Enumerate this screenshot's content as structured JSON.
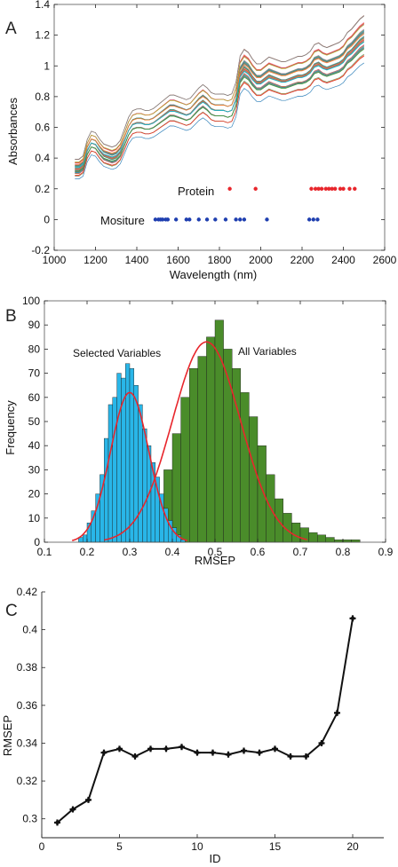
{
  "chart_data": [
    {
      "panel_label": "A",
      "type": "line",
      "xlabel": "Wavelength (nm)",
      "ylabel": "Absorbances",
      "xlim": [
        1000,
        2600
      ],
      "ylim": [
        -0.2,
        1.4
      ],
      "xticks": [
        1000,
        1200,
        1400,
        1600,
        1800,
        2000,
        2200,
        2400,
        2600
      ],
      "yticks": [
        -0.2,
        0,
        0.2,
        0.4,
        0.6,
        0.8,
        1,
        1.2,
        1.4
      ],
      "spectra": {
        "count": 40,
        "x": [
          1100,
          1120,
          1140,
          1160,
          1180,
          1200,
          1220,
          1240,
          1260,
          1280,
          1300,
          1320,
          1340,
          1360,
          1380,
          1400,
          1420,
          1440,
          1460,
          1480,
          1500,
          1520,
          1540,
          1560,
          1580,
          1600,
          1620,
          1640,
          1660,
          1680,
          1700,
          1720,
          1740,
          1760,
          1780,
          1800,
          1820,
          1840,
          1860,
          1880,
          1900,
          1920,
          1940,
          1960,
          1980,
          2000,
          2020,
          2040,
          2060,
          2080,
          2100,
          2120,
          2140,
          2160,
          2180,
          2200,
          2220,
          2240,
          2260,
          2280,
          2300,
          2320,
          2340,
          2360,
          2380,
          2400,
          2420,
          2440,
          2460,
          2480,
          2500
        ],
        "mean": [
          0.32,
          0.32,
          0.34,
          0.44,
          0.49,
          0.48,
          0.44,
          0.41,
          0.4,
          0.39,
          0.4,
          0.43,
          0.5,
          0.57,
          0.61,
          0.62,
          0.62,
          0.61,
          0.61,
          0.62,
          0.64,
          0.66,
          0.68,
          0.7,
          0.7,
          0.69,
          0.68,
          0.67,
          0.68,
          0.71,
          0.74,
          0.76,
          0.74,
          0.71,
          0.7,
          0.7,
          0.7,
          0.69,
          0.7,
          0.77,
          0.93,
          0.97,
          0.95,
          0.91,
          0.88,
          0.88,
          0.9,
          0.92,
          0.91,
          0.9,
          0.89,
          0.89,
          0.9,
          0.91,
          0.92,
          0.92,
          0.93,
          0.95,
          0.99,
          1.0,
          0.98,
          0.97,
          0.98,
          0.99,
          1.0,
          1.02,
          1.06,
          1.08,
          1.11,
          1.14,
          1.16
        ],
        "spread_low": -0.06,
        "spread_high": 0.1,
        "colors": [
          "#1f77b4",
          "#d62728",
          "#2ca02c",
          "#17becf",
          "#9467bd",
          "#e377c2",
          "#8c564b",
          "#bcbd22",
          "#ff7f0e",
          "#7f7f7f"
        ]
      },
      "markers": [
        {
          "name": "Protein",
          "y": 0.2,
          "color": "#e8262c",
          "x": [
            1850,
            1975,
            2245,
            2265,
            2280,
            2295,
            2315,
            2330,
            2345,
            2360,
            2385,
            2400,
            2430,
            2455
          ]
        },
        {
          "name": "Mositure",
          "y": 0,
          "color": "#1f3fb0",
          "x": [
            1490,
            1505,
            1515,
            1525,
            1540,
            1550,
            1590,
            1640,
            1655,
            1700,
            1740,
            1780,
            1830,
            1880,
            1900,
            1920,
            2030,
            2235,
            2255,
            2275
          ]
        }
      ]
    },
    {
      "panel_label": "B",
      "type": "bar",
      "xlabel": "RMSEP",
      "ylabel": "Frequency",
      "xlim": [
        0.1,
        0.9
      ],
      "ylim": [
        0,
        100
      ],
      "xticks": [
        0.1,
        0.2,
        0.3,
        0.4,
        0.5,
        0.6,
        0.7,
        0.8,
        0.9
      ],
      "yticks": [
        0,
        10,
        20,
        30,
        40,
        50,
        60,
        70,
        80,
        90,
        100
      ],
      "annotations": [
        "Selected Variables",
        "All Variables"
      ],
      "series": [
        {
          "color": "#29b6e8",
          "bin_width": 0.01,
          "bin_starts": [
            0.18,
            0.19,
            0.2,
            0.21,
            0.22,
            0.23,
            0.24,
            0.25,
            0.26,
            0.27,
            0.28,
            0.29,
            0.3,
            0.31,
            0.32,
            0.33,
            0.34,
            0.35,
            0.36,
            0.37,
            0.38,
            0.39,
            0.4,
            0.41,
            0.42
          ],
          "counts": [
            2,
            3,
            8,
            13,
            20,
            28,
            43,
            57,
            60,
            70,
            68,
            74,
            72,
            65,
            57,
            47,
            40,
            33,
            27,
            20,
            14,
            9,
            6,
            3,
            1
          ],
          "fit": {
            "mean": 0.3,
            "peak": 62,
            "sd": 0.045
          }
        },
        {
          "color": "#4a8c2a",
          "bin_width": 0.02,
          "bin_starts": [
            0.34,
            0.36,
            0.38,
            0.4,
            0.42,
            0.44,
            0.46,
            0.48,
            0.5,
            0.52,
            0.54,
            0.56,
            0.58,
            0.6,
            0.62,
            0.64,
            0.66,
            0.68,
            0.7,
            0.72,
            0.74,
            0.76,
            0.78,
            0.8,
            0.82
          ],
          "counts": [
            5,
            15,
            30,
            45,
            60,
            72,
            77,
            85,
            92,
            80,
            72,
            62,
            52,
            40,
            28,
            18,
            12,
            8,
            6,
            4,
            3,
            2,
            1,
            1,
            1
          ],
          "fit": {
            "mean": 0.48,
            "peak": 83,
            "sd": 0.08
          }
        }
      ]
    },
    {
      "panel_label": "C",
      "type": "line",
      "xlabel": "ID",
      "ylabel": "RMSEP",
      "xlim": [
        0,
        22
      ],
      "ylim": [
        0.29,
        0.42
      ],
      "xticks": [
        0,
        5,
        10,
        15,
        20
      ],
      "yticks": [
        0.3,
        0.32,
        0.34,
        0.36,
        0.38,
        0.4,
        0.42
      ],
      "x": [
        1,
        2,
        3,
        4,
        5,
        6,
        7,
        8,
        9,
        10,
        11,
        12,
        13,
        14,
        15,
        16,
        17,
        18,
        19,
        20
      ],
      "y": [
        0.298,
        0.305,
        0.31,
        0.335,
        0.337,
        0.333,
        0.337,
        0.337,
        0.338,
        0.335,
        0.335,
        0.334,
        0.336,
        0.335,
        0.337,
        0.333,
        0.333,
        0.34,
        0.356,
        0.406
      ]
    }
  ]
}
